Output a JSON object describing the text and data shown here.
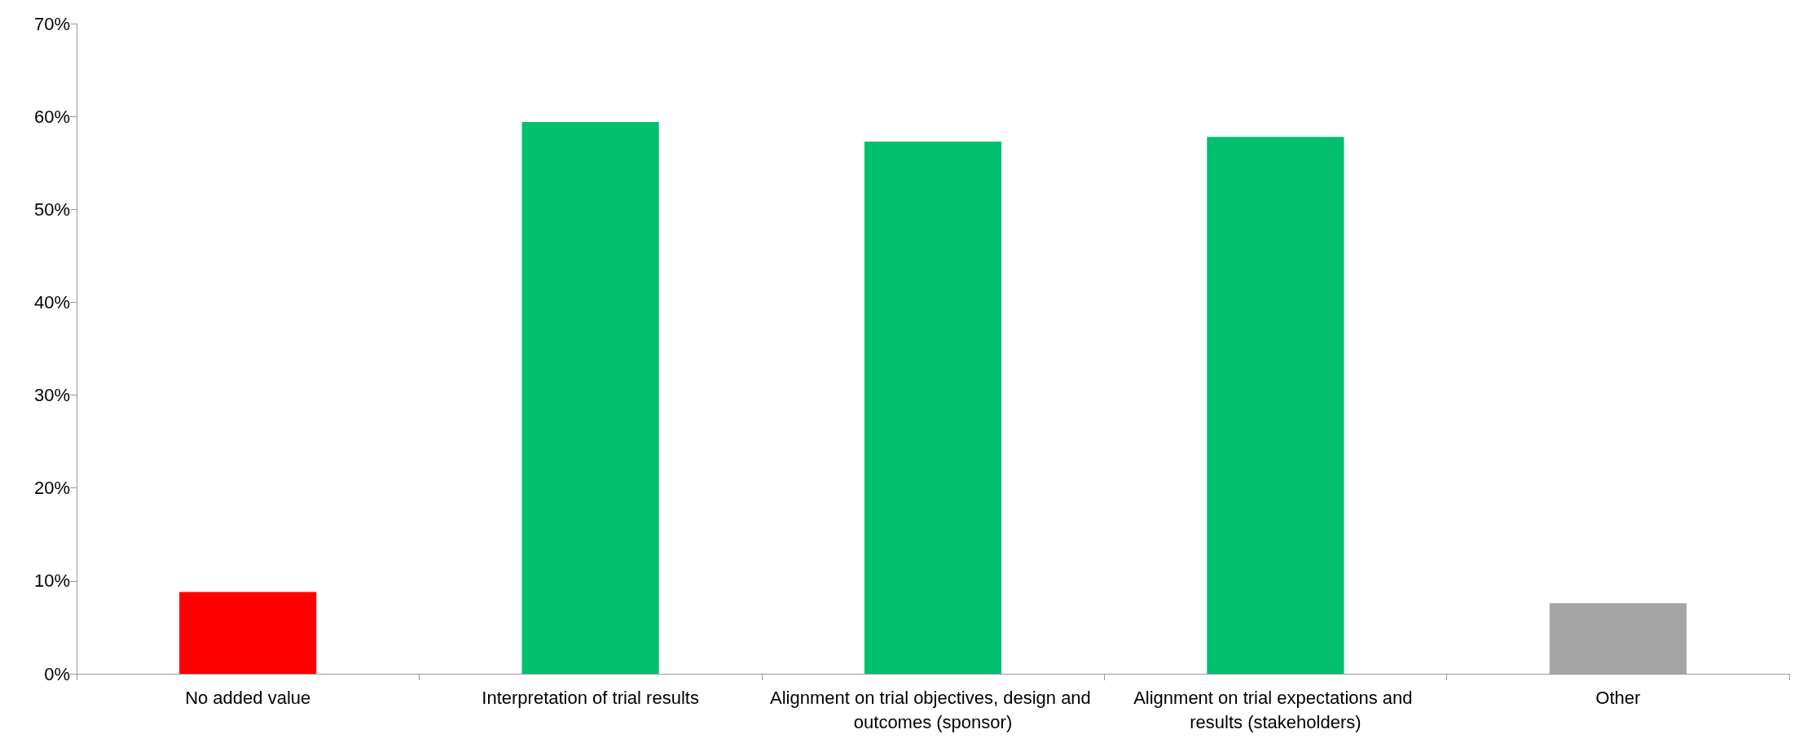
{
  "chart_data": {
    "type": "bar",
    "categories": [
      "No added value",
      "Interpretation of trial results",
      "Alignment on trial objectives, design and outcomes (sponsor)",
      "Alignment on trial expectations and results (stakeholders)",
      "Other"
    ],
    "values": [
      8.8,
      59.4,
      57.3,
      57.8,
      7.6
    ],
    "colors": [
      "#ff0000",
      "#00bf6f",
      "#00bf6f",
      "#00bf6f",
      "#a6a6a6"
    ],
    "ylim": [
      0,
      70
    ],
    "yticks": [
      {
        "value": 0,
        "label": "0%"
      },
      {
        "value": 10,
        "label": "10%"
      },
      {
        "value": 20,
        "label": "20%"
      },
      {
        "value": 30,
        "label": "30%"
      },
      {
        "value": 40,
        "label": "40%"
      },
      {
        "value": 50,
        "label": "50%"
      },
      {
        "value": 60,
        "label": "60%"
      },
      {
        "value": 70,
        "label": "70%"
      }
    ],
    "grid": false
  }
}
